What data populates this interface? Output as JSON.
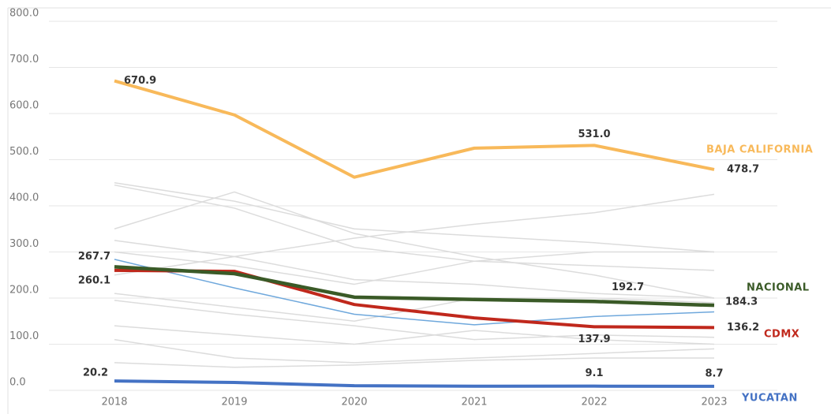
{
  "chart_data": {
    "type": "line",
    "categories": [
      "2018",
      "2019",
      "2020",
      "2021",
      "2022",
      "2023"
    ],
    "ylim": [
      0,
      800
    ],
    "yticks": [
      {
        "value": 0,
        "label": "0.0"
      },
      {
        "value": 100,
        "label": "100.0"
      },
      {
        "value": 200,
        "label": "200.0"
      },
      {
        "value": 300,
        "label": "300.0"
      },
      {
        "value": 400,
        "label": "400.0"
      },
      {
        "value": 500,
        "label": "500.0"
      },
      {
        "value": 600,
        "label": "600.0"
      },
      {
        "value": 700,
        "label": "700.0"
      },
      {
        "value": 800,
        "label": "800.0"
      }
    ],
    "grid": true,
    "series": [
      {
        "color": "#dcdcdc",
        "values": [
          450,
          410,
          350,
          335,
          320,
          300
        ]
      },
      {
        "color": "#dcdcdc",
        "values": [
          445,
          395,
          310,
          280,
          270,
          260
        ]
      },
      {
        "color": "#dcdcdc",
        "values": [
          350,
          430,
          340,
          290,
          250,
          200
        ]
      },
      {
        "color": "#dcdcdc",
        "values": [
          325,
          290,
          240,
          230,
          210,
          200
        ]
      },
      {
        "color": "#dcdcdc",
        "values": [
          300,
          270,
          230,
          280,
          300,
          300
        ]
      },
      {
        "color": "#dcdcdc",
        "values": [
          250,
          290,
          330,
          360,
          385,
          425
        ]
      },
      {
        "color": "#dcdcdc",
        "values": [
          210,
          180,
          150,
          200,
          200,
          190
        ]
      },
      {
        "color": "#dcdcdc",
        "values": [
          195,
          165,
          140,
          110,
          120,
          115
        ]
      },
      {
        "color": "#dcdcdc",
        "values": [
          140,
          120,
          100,
          130,
          110,
          100
        ]
      },
      {
        "color": "#dcdcdc",
        "values": [
          110,
          70,
          60,
          70,
          80,
          90
        ]
      },
      {
        "color": "#dcdcdc",
        "values": [
          60,
          50,
          55,
          65,
          70,
          70
        ]
      },
      {
        "color": "#6fa8dc",
        "values": [
          284,
          222,
          165,
          142,
          160,
          170
        ]
      },
      {
        "name": "BAJA CALIFORNIA",
        "color": "#f8b95a",
        "values": [
          670.9,
          597,
          462,
          525,
          531.0,
          478.7
        ],
        "value_labels": [
          "670.9",
          null,
          null,
          null,
          "531.0",
          "478.7"
        ]
      },
      {
        "name": "CDMX",
        "color": "#c0281c",
        "values": [
          260.1,
          258,
          186,
          157,
          137.9,
          136.2
        ],
        "value_labels": [
          "260.1",
          null,
          null,
          null,
          "137.9",
          "136.2"
        ]
      },
      {
        "name": "NACIONAL",
        "color": "#3a5a27",
        "values": [
          267.7,
          253,
          202,
          197,
          192.7,
          184.3
        ],
        "value_labels": [
          "267.7",
          null,
          null,
          null,
          "192.7",
          "184.3"
        ]
      },
      {
        "name": "YUCATAN",
        "color": "#4472c4",
        "values": [
          20.2,
          17,
          10,
          9,
          9.1,
          8.7
        ],
        "value_labels": [
          "20.2",
          null,
          null,
          null,
          "9.1",
          "8.7"
        ]
      }
    ]
  }
}
